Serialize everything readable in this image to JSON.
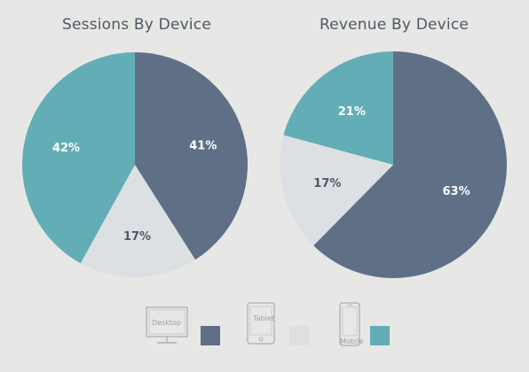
{
  "chart_data": [
    {
      "type": "pie",
      "title": "Sessions By Device",
      "categories": [
        "Desktop",
        "Tablet",
        "Mobile"
      ],
      "values": [
        41,
        17,
        42
      ],
      "labels": [
        "41%",
        "17%",
        "42%"
      ]
    },
    {
      "type": "pie",
      "title": "Revenue By Device",
      "categories": [
        "Desktop",
        "Tablet",
        "Mobile"
      ],
      "values": [
        63,
        17,
        21
      ],
      "labels": [
        "63%",
        "17%",
        "21%"
      ]
    }
  ],
  "colors": {
    "Desktop": "#5e6f86",
    "Tablet": "#dde0e3",
    "Mobile": "#63adb6",
    "background": "#e7e7e6"
  },
  "legend": {
    "desktop_label": "Desktop",
    "tablet_label": "Tablet",
    "mobile_label": "Mobile",
    "desktop_icon": "desktop-monitor-icon",
    "tablet_icon": "tablet-icon",
    "mobile_icon": "mobile-phone-icon"
  }
}
